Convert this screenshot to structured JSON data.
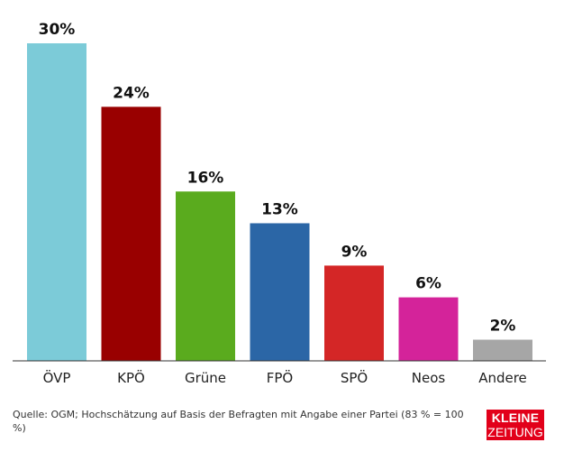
{
  "chart_data": {
    "type": "bar",
    "categories": [
      "ÖVP",
      "KPÖ",
      "Grüne",
      "FPÖ",
      "SPÖ",
      "Neos",
      "Andere"
    ],
    "values": [
      30,
      24,
      16,
      13,
      9,
      6,
      2
    ],
    "value_labels": [
      "30%",
      "24%",
      "16%",
      "13%",
      "9%",
      "6%",
      "2%"
    ],
    "colors": [
      "#7ccbd8",
      "#990000",
      "#5aab1e",
      "#2b66a6",
      "#d42626",
      "#d4239a",
      "#a6a6a6"
    ],
    "ylim": [
      0,
      30
    ],
    "grid": false,
    "legend": "none"
  },
  "footer": {
    "source": "Quelle: OGM; Hochschätzung auf Basis der Befragten mit Angabe einer Partei (83 % = 100 %)",
    "logo_line1": "KLEINE",
    "logo_line2": "ZEITUNG"
  }
}
